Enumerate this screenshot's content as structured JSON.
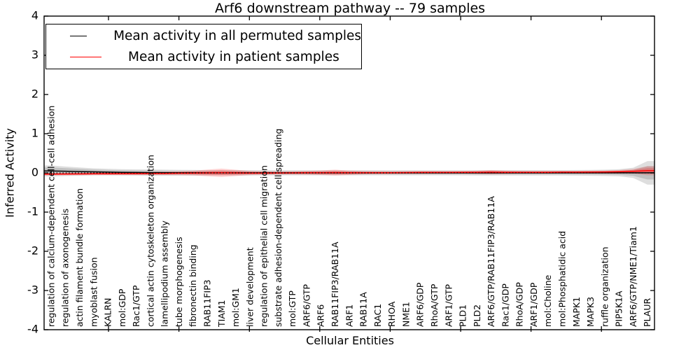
{
  "title": "Arf6 downstream pathway -- 79 samples",
  "axes": {
    "ylabel": "Inferred Activity",
    "xlabel": "Cellular Entities",
    "yticks": [
      4,
      3,
      2,
      1,
      0,
      -1,
      -2,
      -3,
      -4
    ],
    "ylim": [
      -4,
      4
    ]
  },
  "legend": {
    "items": [
      {
        "label": "Mean activity in all permuted samples",
        "color": "#000000"
      },
      {
        "label": "Mean activity in patient samples",
        "color": "#ff0000"
      }
    ],
    "position": "upper left"
  },
  "chart_data": {
    "type": "line",
    "title": "Arf6 downstream pathway -- 79 samples",
    "xlabel": "Cellular Entities",
    "ylabel": "Inferred Activity",
    "ylim": [
      -4,
      4
    ],
    "yticks": [
      4,
      3,
      2,
      1,
      0,
      -1,
      -2,
      -3,
      -4
    ],
    "zero_line": true,
    "grid": false,
    "legend_position": "upper left",
    "categories": [
      "regulation of calcium-dependent cell-cell adhesion",
      "regulation of axonogenesis",
      "actin filament bundle formation",
      "myoblast fusion",
      "KALRN",
      "mol:GDP",
      "Rac1/GTP",
      "cortical actin cytoskeleton organization",
      "lamellipodium assembly",
      "tube morphogenesis",
      "fibronectin binding",
      "RAB11FIP3",
      "TIAM1",
      "mol:GM1",
      "liver development",
      "regulation of epithelial cell migration",
      "substrate adhesion-dependent cell spreading",
      "mol:GTP",
      "ARF6/GTP",
      "ARF6",
      "RAB11FIP3/RAB11A",
      "ARF1",
      "RAB11A",
      "RAC1",
      "RHOA",
      "NME1",
      "ARF6/GDP",
      "RhoA/GTP",
      "ARF1/GTP",
      "PLD1",
      "PLD2",
      "ARF6/GTP/RAB11FIP3/RAB11A",
      "Rac1/GDP",
      "RhoA/GDP",
      "ARF1/GDP",
      "mol:Choline",
      "mol:Phosphatidic acid",
      "MAPK1",
      "MAPK3",
      "ruffle organization",
      "PIP5K1A",
      "ARF6/GTP/NME1/Tiam1",
      "PLAUR"
    ],
    "series": [
      {
        "name": "Mean activity in all permuted samples",
        "color": "#000000",
        "band_color": "rgba(0,0,0,0.13)",
        "values": [
          0.05,
          0.042,
          0.034,
          0.026,
          0.02,
          0.014,
          0.01,
          0.007,
          0.005,
          0.004,
          0.003,
          0.002,
          0.002,
          0.002,
          0.002,
          0.002,
          0.002,
          0.002,
          0.002,
          0.002,
          0.002,
          0.002,
          0.002,
          0.002,
          0.002,
          0.002,
          0.002,
          0.002,
          0.002,
          0.002,
          0.002,
          0.002,
          0.002,
          0.002,
          0.002,
          0.002,
          0.002,
          0.002,
          0.002,
          0.002,
          0.002,
          0.002,
          0.002
        ],
        "band_halfwidth_outer": [
          0.14,
          0.12,
          0.105,
          0.09,
          0.085,
          0.08,
          0.08,
          0.08,
          0.078,
          0.075,
          0.072,
          0.07,
          0.07,
          0.07,
          0.068,
          0.066,
          0.065,
          0.065,
          0.065,
          0.065,
          0.065,
          0.065,
          0.065,
          0.065,
          0.065,
          0.065,
          0.065,
          0.065,
          0.065,
          0.066,
          0.068,
          0.07,
          0.07,
          0.07,
          0.07,
          0.07,
          0.07,
          0.072,
          0.075,
          0.08,
          0.09,
          0.13,
          0.3
        ],
        "band_halfwidth_inner": [
          0.09,
          0.08,
          0.068,
          0.058,
          0.053,
          0.05,
          0.05,
          0.05,
          0.048,
          0.045,
          0.042,
          0.04,
          0.04,
          0.04,
          0.039,
          0.038,
          0.037,
          0.037,
          0.037,
          0.037,
          0.037,
          0.037,
          0.037,
          0.037,
          0.037,
          0.037,
          0.037,
          0.037,
          0.037,
          0.038,
          0.039,
          0.04,
          0.04,
          0.04,
          0.04,
          0.04,
          0.04,
          0.041,
          0.043,
          0.046,
          0.052,
          0.075,
          0.17
        ]
      },
      {
        "name": "Mean activity in patient samples",
        "color": "#ff0000",
        "band_color": "rgba(255,0,0,0.18)",
        "values": [
          -0.03,
          -0.028,
          -0.026,
          -0.024,
          -0.022,
          -0.02,
          -0.018,
          -0.015,
          -0.012,
          -0.008,
          -0.004,
          0,
          0.004,
          0,
          -0.004,
          -0.004,
          -0.002,
          0,
          0.003,
          0.004,
          0.008,
          0.004,
          0.004,
          0.004,
          0.005,
          0.008,
          0.01,
          0.01,
          0.01,
          0.012,
          0.014,
          0.018,
          0.014,
          0.014,
          0.014,
          0.015,
          0.018,
          0.018,
          0.02,
          0.022,
          0.028,
          0.04,
          0.055
        ],
        "band_halfwidth": [
          0.032,
          0.032,
          0.032,
          0.032,
          0.032,
          0.033,
          0.035,
          0.038,
          0.042,
          0.048,
          0.06,
          0.085,
          0.105,
          0.08,
          0.052,
          0.042,
          0.04,
          0.04,
          0.045,
          0.058,
          0.075,
          0.055,
          0.042,
          0.038,
          0.036,
          0.036,
          0.036,
          0.036,
          0.036,
          0.036,
          0.042,
          0.055,
          0.042,
          0.037,
          0.036,
          0.036,
          0.036,
          0.036,
          0.037,
          0.04,
          0.046,
          0.06,
          0.115
        ]
      }
    ]
  }
}
